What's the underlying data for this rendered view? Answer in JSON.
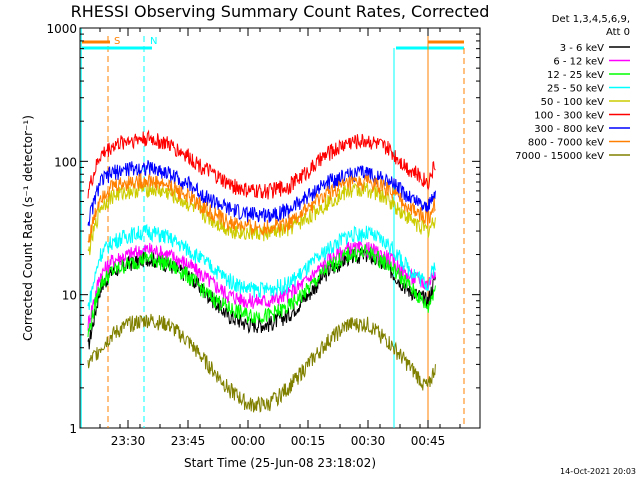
{
  "chart_data": {
    "type": "line",
    "title": "RHESSI Observing Summary Count Rates, Corrected",
    "xlabel": "Start Time (25-Jun-08 23:18:02)",
    "ylabel": "Corrected Count Rate (s⁻¹ detector⁻¹)",
    "y_scale": "log",
    "ylim": [
      1,
      1000
    ],
    "yticks": [
      1,
      10,
      100,
      1000
    ],
    "ytick_labels": [
      "1",
      "10",
      "100",
      "1000"
    ],
    "xlim_minutes_from_start": [
      0,
      100
    ],
    "xtick_labels": [
      "23:30",
      "23:45",
      "00:00",
      "00:15",
      "00:30",
      "00:45"
    ],
    "xtick_minutes_from_start": [
      12,
      27,
      42,
      57,
      72,
      87
    ],
    "grid": false,
    "legend_header": [
      "Det 1,3,4,5,6,9,",
      "Att 0"
    ],
    "legend_position": "right",
    "series": [
      {
        "name": "3 - 6 keV",
        "color": "#000000",
        "x": [
          2,
          5,
          8,
          12,
          17,
          22,
          27,
          32,
          37,
          42,
          47,
          52,
          57,
          62,
          67,
          72,
          77,
          82,
          87,
          89
        ],
        "values": [
          4,
          11,
          15,
          17,
          19,
          17,
          14,
          10,
          7,
          6,
          6,
          7,
          10,
          15,
          19,
          20,
          16,
          11,
          9,
          14
        ]
      },
      {
        "name": "6 - 12 keV",
        "color": "#ff00ff",
        "x": [
          2,
          5,
          8,
          12,
          17,
          22,
          27,
          32,
          37,
          42,
          47,
          52,
          57,
          62,
          67,
          72,
          77,
          82,
          87,
          89
        ],
        "values": [
          6,
          14,
          18,
          20,
          22,
          20,
          17,
          13,
          10,
          9,
          9,
          10,
          13,
          18,
          22,
          22,
          19,
          14,
          12,
          16
        ]
      },
      {
        "name": "12 - 25 keV",
        "color": "#00ff00",
        "x": [
          2,
          5,
          8,
          12,
          17,
          22,
          27,
          32,
          37,
          42,
          47,
          52,
          57,
          62,
          67,
          72,
          77,
          82,
          87,
          89
        ],
        "values": [
          5,
          12,
          15,
          17,
          19,
          17,
          14,
          10,
          8,
          7,
          7,
          8,
          11,
          16,
          20,
          21,
          17,
          12,
          8,
          12
        ]
      },
      {
        "name": "25 - 50 keV",
        "color": "#00ffff",
        "x": [
          2,
          5,
          8,
          12,
          17,
          22,
          27,
          32,
          37,
          42,
          47,
          52,
          57,
          62,
          67,
          72,
          77,
          82,
          87,
          89
        ],
        "values": [
          8,
          20,
          25,
          28,
          30,
          27,
          22,
          17,
          13,
          11,
          11,
          12,
          16,
          22,
          28,
          29,
          24,
          16,
          12,
          18
        ]
      },
      {
        "name": "50 - 100 keV",
        "color": "#cccc00",
        "x": [
          2,
          5,
          8,
          12,
          17,
          22,
          27,
          32,
          37,
          42,
          47,
          52,
          57,
          62,
          67,
          72,
          77,
          82,
          87,
          89
        ],
        "values": [
          20,
          45,
          55,
          60,
          63,
          58,
          48,
          38,
          31,
          29,
          29,
          31,
          38,
          50,
          60,
          62,
          52,
          38,
          30,
          38
        ]
      },
      {
        "name": "100 - 300 keV",
        "color": "#ff0000",
        "x": [
          2,
          5,
          8,
          12,
          17,
          22,
          27,
          32,
          37,
          42,
          47,
          52,
          57,
          62,
          67,
          72,
          77,
          82,
          87,
          89
        ],
        "values": [
          60,
          110,
          130,
          145,
          150,
          135,
          110,
          85,
          68,
          60,
          60,
          65,
          85,
          115,
          140,
          145,
          125,
          90,
          70,
          100
        ]
      },
      {
        "name": "300 - 800 keV",
        "color": "#0000ff",
        "x": [
          2,
          5,
          8,
          12,
          17,
          22,
          27,
          32,
          37,
          42,
          47,
          52,
          57,
          62,
          67,
          72,
          77,
          82,
          87,
          89
        ],
        "values": [
          35,
          70,
          82,
          88,
          90,
          82,
          68,
          53,
          44,
          40,
          40,
          43,
          55,
          70,
          80,
          82,
          72,
          55,
          45,
          60
        ]
      },
      {
        "name": "800 - 7000 keV",
        "color": "#ff8000",
        "x": [
          2,
          5,
          8,
          12,
          17,
          22,
          27,
          32,
          37,
          42,
          47,
          52,
          57,
          62,
          67,
          72,
          77,
          82,
          87,
          89
        ],
        "values": [
          25,
          55,
          65,
          70,
          72,
          66,
          55,
          43,
          35,
          32,
          32,
          35,
          44,
          58,
          68,
          70,
          62,
          46,
          37,
          50
        ]
      },
      {
        "name": "7000 - 15000 keV",
        "color": "#808000",
        "x": [
          2,
          5,
          8,
          12,
          17,
          22,
          27,
          32,
          37,
          42,
          47,
          52,
          57,
          62,
          67,
          72,
          77,
          82,
          87,
          89
        ],
        "values": [
          3,
          4,
          5,
          6,
          6.5,
          6,
          4.5,
          3,
          2,
          1.5,
          1.5,
          2,
          3,
          4.5,
          6,
          6,
          4.5,
          3,
          2,
          3
        ]
      }
    ],
    "annotations": [
      {
        "label": "S",
        "color": "#ff8000",
        "x_minutes": 7
      },
      {
        "label": "N",
        "color": "#00ffff",
        "x_minutes": 16
      }
    ],
    "date_stamp": "14-Oct-2021 20:03"
  }
}
